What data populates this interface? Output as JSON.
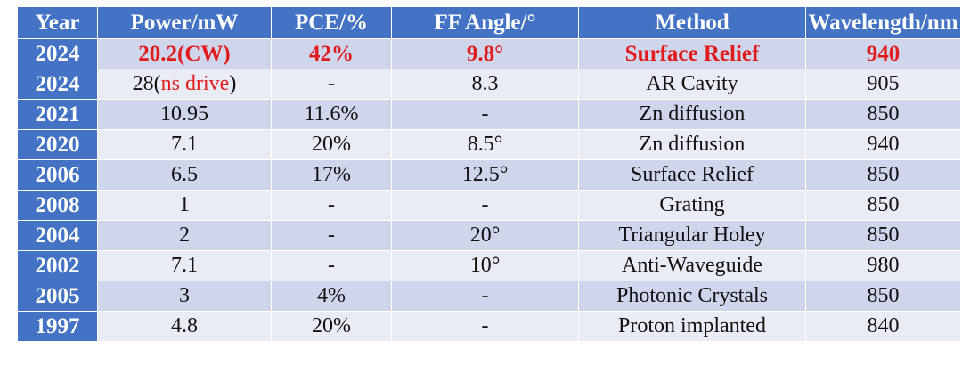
{
  "colors": {
    "header_bg": "#4472c4",
    "row_dark": "#cfd5ea",
    "row_light": "#e9ebf5",
    "highlight_text": "#e01b1b",
    "header_text": "#ffffff"
  },
  "table": {
    "headers": [
      "Year",
      "Power/mW",
      "PCE/%",
      "FF Angle/°",
      "Method",
      "Wavelength/nm"
    ],
    "rows": [
      {
        "year": "2024",
        "power": "20.2(CW)",
        "power_note": "",
        "pce": "42%",
        "ff": "9.8°",
        "method": "Surface Relief",
        "wavelength": "940",
        "highlight": true
      },
      {
        "year": "2024",
        "power": "28(",
        "power_note": "ns drive",
        "power_suffix": ")",
        "pce": "-",
        "ff": "8.3",
        "method": "AR Cavity",
        "wavelength": "905",
        "highlight": false
      },
      {
        "year": "2021",
        "power": "10.95",
        "power_note": "",
        "pce": "11.6%",
        "ff": "-",
        "method": "Zn diffusion",
        "wavelength": "850",
        "highlight": false
      },
      {
        "year": "2020",
        "power": "7.1",
        "power_note": "",
        "pce": "20%",
        "ff": "8.5°",
        "method": "Zn diffusion",
        "wavelength": "940",
        "highlight": false
      },
      {
        "year": "2006",
        "power": "6.5",
        "power_note": "",
        "pce": "17%",
        "ff": "12.5°",
        "method": "Surface Relief",
        "wavelength": "850",
        "highlight": false
      },
      {
        "year": "2008",
        "power": "1",
        "power_note": "",
        "pce": "-",
        "ff": "-",
        "method": "Grating",
        "wavelength": "850",
        "highlight": false
      },
      {
        "year": "2004",
        "power": "2",
        "power_note": "",
        "pce": "-",
        "ff": "20°",
        "method": "Triangular Holey",
        "wavelength": "850",
        "highlight": false
      },
      {
        "year": "2002",
        "power": "7.1",
        "power_note": "",
        "pce": "-",
        "ff": "10°",
        "method": "Anti-Waveguide",
        "wavelength": "980",
        "highlight": false
      },
      {
        "year": "2005",
        "power": "3",
        "power_note": "",
        "pce": "4%",
        "ff": "-",
        "method": "Photonic Crystals",
        "wavelength": "850",
        "highlight": false
      },
      {
        "year": "1997",
        "power": "4.8",
        "power_note": "",
        "pce": "20%",
        "ff": "-",
        "method": "Proton implanted",
        "wavelength": "840",
        "highlight": false
      }
    ]
  }
}
